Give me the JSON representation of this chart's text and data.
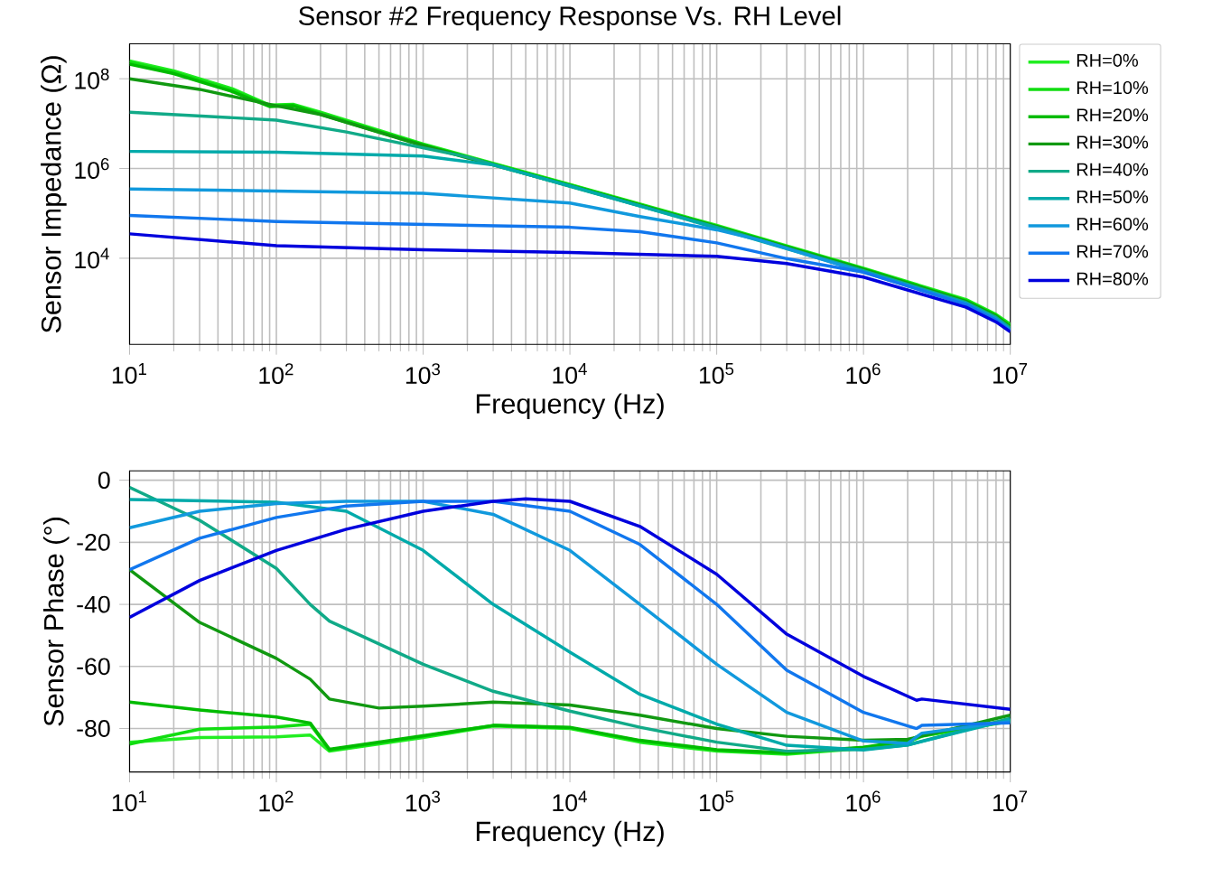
{
  "chart_data": [
    {
      "type": "line",
      "title": "Sensor #2 Frequency Response Vs. RH Level",
      "xlabel": "Frequency (Hz)",
      "ylabel": "Sensor Impedance (Ω)",
      "log": "xy",
      "grid": true,
      "legend": "right",
      "xlim": [
        10,
        10000000
      ],
      "ylim": [
        120,
        600000000
      ],
      "xticks": [
        {
          "value": 10,
          "label": "10$^{1}$"
        },
        {
          "value": 100,
          "label": "10$^{2}$"
        },
        {
          "value": 1000,
          "label": "10$^{3}$"
        },
        {
          "value": 10000,
          "label": "10$^{4}$"
        },
        {
          "value": 100000,
          "label": "10$^{5}$"
        },
        {
          "value": 1000000,
          "label": "10$^{6}$"
        },
        {
          "value": 10000000,
          "label": "10$^{7}$"
        }
      ],
      "yticks": [
        {
          "value": 10000,
          "label": "10$^{4}$"
        },
        {
          "value": 1000000,
          "label": "10$^{6}$"
        },
        {
          "value": 100000000,
          "label": "10$^{8}$"
        }
      ],
      "series": [
        {
          "name": "RH=0%",
          "color": "#22ee22",
          "x": [
            10,
            20,
            50,
            90,
            130,
            200,
            1000,
            10000,
            100000,
            1000000,
            5000000,
            8000000,
            10000000
          ],
          "values": [
            250000000.0,
            150000000.0,
            60000000.0,
            26000000.0,
            27000000.0,
            18000000.0,
            3500000.0,
            440000.0,
            54000.0,
            6000,
            1200,
            560,
            340
          ]
        },
        {
          "name": "RH=10%",
          "color": "#11dd11",
          "x": [
            10,
            20,
            50,
            90,
            130,
            200,
            1000,
            10000,
            100000,
            1000000,
            5000000,
            8000000,
            10000000
          ],
          "values": [
            230000000.0,
            140000000.0,
            56000000.0,
            25000000.0,
            26000000.0,
            17000000.0,
            3400000.0,
            430000.0,
            52000.0,
            5800,
            1150,
            540,
            320
          ]
        },
        {
          "name": "RH=20%",
          "color": "#00bb00",
          "x": [
            10,
            20,
            50,
            90,
            130,
            200,
            1000,
            10000,
            100000,
            1000000,
            5000000,
            8000000,
            10000000
          ],
          "values": [
            210000000.0,
            130000000.0,
            52000000.0,
            24000000.0,
            25000000.0,
            16000000.0,
            3300000.0,
            420000.0,
            51000.0,
            5700,
            1100,
            520,
            300
          ]
        },
        {
          "name": "RH=30%",
          "color": "#119911",
          "x": [
            10,
            30,
            100,
            200,
            1000,
            10000,
            100000,
            1000000,
            5000000,
            8000000,
            10000000
          ],
          "values": [
            100000000.0,
            58000000.0,
            25000000.0,
            16000000.0,
            3200000.0,
            410000.0,
            50000.0,
            5500,
            1070,
            500,
            290
          ]
        },
        {
          "name": "RH=40%",
          "color": "#11aa88",
          "x": [
            10,
            100,
            300,
            2000,
            10000,
            100000,
            1000000,
            5000000,
            8000000,
            10000000
          ],
          "values": [
            18000000.0,
            12000000.0,
            6500000.0,
            1800000.0,
            400000.0,
            49000.0,
            5300,
            1030,
            480,
            280
          ]
        },
        {
          "name": "RH=50%",
          "color": "#00aaaa",
          "x": [
            10,
            100,
            1000,
            3000,
            10000,
            100000,
            1000000,
            5000000,
            8000000,
            10000000
          ],
          "values": [
            2400000.0,
            2300000.0,
            1900000.0,
            1200000.0,
            410000.0,
            47000.0,
            5100,
            1000,
            460,
            260
          ]
        },
        {
          "name": "RH=60%",
          "color": "#1199dd",
          "x": [
            10,
            1000,
            10000,
            30000,
            100000,
            200000,
            1000000,
            5000000,
            8000000,
            10000000
          ],
          "values": [
            350000.0,
            280000.0,
            170000.0,
            85000.0,
            43000.0,
            25000.0,
            4900,
            960,
            440,
            250
          ]
        },
        {
          "name": "RH=70%",
          "color": "#1177ee",
          "x": [
            10,
            100,
            10000,
            30000,
            100000,
            300000,
            1000000,
            5000000,
            8000000,
            10000000
          ],
          "values": [
            90000.0,
            66000.0,
            49000.0,
            39000.0,
            22000.0,
            9800,
            4900,
            930,
            420,
            240
          ]
        },
        {
          "name": "RH=80%",
          "color": "#0000dd",
          "x": [
            10,
            100,
            1000,
            10000,
            100000,
            300000,
            1000000,
            5000000,
            8000000,
            10000000
          ],
          "values": [
            35000.0,
            19000.0,
            15500.0,
            13500.0,
            11000.0,
            7600,
            3800,
            810,
            380,
            230
          ]
        }
      ]
    },
    {
      "type": "line",
      "xlabel": "Frequency (Hz)",
      "ylabel": "Sensor Phase (°)",
      "log": "x",
      "grid": true,
      "xlim": [
        10,
        10000000
      ],
      "ylim": [
        -94,
        3
      ],
      "xticks": [
        {
          "value": 10,
          "label": "10$^{1}$"
        },
        {
          "value": 100,
          "label": "10$^{2}$"
        },
        {
          "value": 1000,
          "label": "10$^{3}$"
        },
        {
          "value": 10000,
          "label": "10$^{4}$"
        },
        {
          "value": 100000,
          "label": "10$^{5}$"
        },
        {
          "value": 1000000,
          "label": "10$^{6}$"
        },
        {
          "value": 10000000,
          "label": "10$^{7}$"
        }
      ],
      "yticks": [
        -80,
        -60,
        -40,
        -20,
        0
      ],
      "series": [
        {
          "color": "#22ee22",
          "x": [
            10,
            30,
            100,
            170,
            230,
            1000,
            3000,
            10000,
            30000,
            100000,
            300000,
            1000000,
            2000000,
            2500000,
            10000000
          ],
          "values": [
            -84.4,
            -82.9,
            -82.7,
            -82.1,
            -87.3,
            -82.9,
            -79.2,
            -80,
            -84.4,
            -87.3,
            -88.3,
            -86.4,
            -84.4,
            -82.5,
            -77.7
          ]
        },
        {
          "color": "#11dd11",
          "x": [
            10,
            30,
            100,
            170,
            230,
            1000,
            3000,
            10000,
            30000,
            100000,
            300000,
            1000000,
            2000000,
            2500000,
            10000000
          ],
          "values": [
            -85,
            -80.2,
            -79.5,
            -78.6,
            -87,
            -82.5,
            -79,
            -79.8,
            -84,
            -87,
            -88,
            -86.2,
            -84.2,
            -82.3,
            -77.5
          ]
        },
        {
          "color": "#00bb00",
          "x": [
            10,
            30,
            100,
            170,
            230,
            1000,
            3000,
            10000,
            30000,
            100000,
            300000,
            1000000,
            2000000,
            2500000,
            10000000
          ],
          "values": [
            -71.5,
            -74,
            -76.3,
            -78.2,
            -86.7,
            -82.3,
            -79,
            -79.6,
            -83.8,
            -86.8,
            -87.8,
            -86,
            -84,
            -82,
            -77.3
          ]
        },
        {
          "color": "#119911",
          "x": [
            10,
            30,
            100,
            170,
            230,
            500,
            1000,
            3000,
            10000,
            30000,
            100000,
            300000,
            1000000,
            2000000,
            10000000
          ],
          "values": [
            -28.8,
            -45.8,
            -57.4,
            -64.1,
            -70.5,
            -73.4,
            -72.8,
            -71.5,
            -72.4,
            -75.7,
            -80,
            -82.5,
            -83.8,
            -83.5,
            -75.7
          ]
        },
        {
          "color": "#11aa88",
          "x": [
            10,
            30,
            100,
            170,
            230,
            1000,
            3000,
            10000,
            30000,
            100000,
            300000,
            1000000,
            2000000,
            10000000
          ],
          "values": [
            -2.3,
            -12.9,
            -28.4,
            -40,
            -45.4,
            -59.3,
            -68,
            -74.4,
            -79.6,
            -84.4,
            -87.3,
            -86.7,
            -85.3,
            -76.7
          ]
        },
        {
          "color": "#00aaaa",
          "x": [
            10,
            100,
            300,
            1000,
            3000,
            10000,
            30000,
            100000,
            300000,
            1000000,
            2000000,
            10000000
          ],
          "values": [
            -6.2,
            -7.1,
            -10,
            -22.6,
            -40,
            -55.4,
            -69,
            -78.6,
            -85.4,
            -86.9,
            -85.3,
            -77.1
          ]
        },
        {
          "color": "#1199dd",
          "x": [
            10,
            30,
            100,
            300,
            1000,
            3000,
            10000,
            30000,
            100000,
            300000,
            1000000,
            2000000,
            2500000,
            10000000
          ],
          "values": [
            -15.3,
            -10,
            -7.5,
            -6.8,
            -6.8,
            -11,
            -22.6,
            -40,
            -59.3,
            -74.8,
            -84,
            -84.8,
            -81.5,
            -77.7
          ]
        },
        {
          "color": "#1177ee",
          "x": [
            10,
            30,
            100,
            300,
            1000,
            3000,
            10000,
            30000,
            100000,
            300000,
            1000000,
            2300000,
            2500000,
            10000000
          ],
          "values": [
            -28.8,
            -18.7,
            -12,
            -8.3,
            -6.8,
            -6.8,
            -10,
            -20.7,
            -40,
            -61.2,
            -74.8,
            -80,
            -79,
            -78.2
          ]
        },
        {
          "color": "#0000dd",
          "x": [
            10,
            30,
            100,
            300,
            1000,
            3000,
            5000,
            10000,
            30000,
            100000,
            300000,
            1000000,
            2300000,
            2500000,
            10000000
          ],
          "values": [
            -44.2,
            -32.3,
            -22.6,
            -15.8,
            -10,
            -6.8,
            -6,
            -6.8,
            -14.9,
            -30.3,
            -49.6,
            -63.2,
            -70.9,
            -70.5,
            -73.8
          ]
        }
      ]
    }
  ]
}
